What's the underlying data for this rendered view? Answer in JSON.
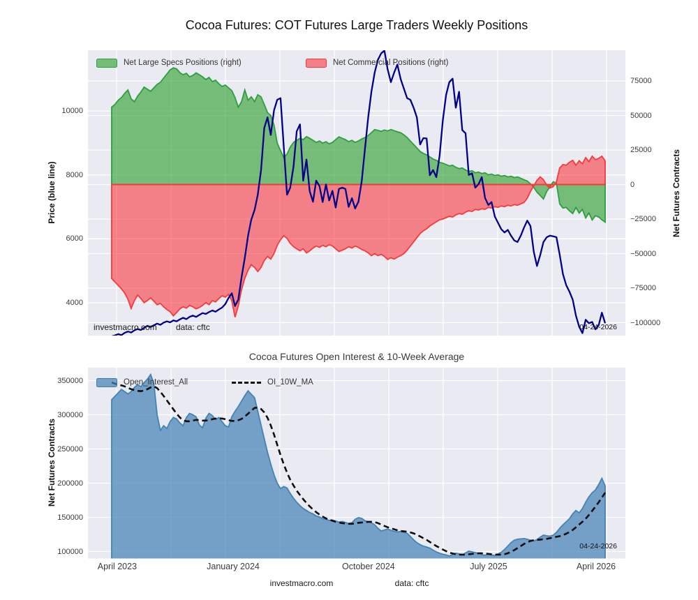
{
  "figure": {
    "title": "Cocoa Futures: COT Futures Large Traders Weekly Positions",
    "footer_site": "investmacro.com",
    "footer_source": "data: cftc"
  },
  "top_chart": {
    "legend": [
      {
        "label": "Net Large Specs Positions (right)",
        "swatch_fill": "rgba(44,160,44,0.62)",
        "swatch_edge": "#2f9e3f"
      },
      {
        "label": "Net Commercial Positions (right)",
        "swatch_fill": "rgba(252,40,48,0.55)",
        "swatch_edge": "#f63a3a"
      }
    ],
    "ylabel_left": "Price (blue line)",
    "ylabel_right": "Net Futures Contracts",
    "watermark": "investmacro.com",
    "source": "data: cftc",
    "date_label": "04-24-2026"
  },
  "bottom_chart": {
    "title": "Cocoa Futures Open Interest & 10-Week Average",
    "legend": [
      {
        "label": "Open_Interest_All",
        "swatch_fill": "rgba(70,130,180,0.72)",
        "swatch_edge": "#3c7fa8"
      },
      {
        "label": "OI_10W_MA"
      }
    ],
    "ylabel": "Net Futures Contracts",
    "date_label": "04-24-2026"
  },
  "colors": {
    "plot_bg": "#eaeaf2",
    "grid": "#ffffff",
    "price_line": "#00008b",
    "specs_fill": "rgba(44,160,44,0.62)",
    "specs_edge": "#2f9e3f",
    "comm_fill": "rgba(252,40,48,0.55)",
    "comm_edge": "#f63a3a",
    "oi_fill": "rgba(70,130,180,0.72)",
    "oi_edge": "#4384b4",
    "ma_line": "#0d0d0d"
  },
  "chart_data": [
    {
      "id": "cot_positions",
      "type": "line",
      "title": "Cocoa Futures: COT Futures Large Traders Weekly Positions",
      "x_unit": "weeks",
      "x_range_labels": [
        "April 2023",
        "April 2026"
      ],
      "last_date": "04-24-2026",
      "grid_on": true,
      "legend_position": "upper-left-inside",
      "xticks": [
        {
          "label": "April 2023",
          "week": 1.7
        },
        {
          "label": "January 2024",
          "week": 37.4
        },
        {
          "label": "October 2024",
          "week": 79.1
        },
        {
          "label": "July 2025",
          "week": 116.1
        },
        {
          "label": "April 2026",
          "week": 149.2
        }
      ],
      "grid_weeks": [
        1.5,
        18.3,
        35,
        51.8,
        68.6,
        85.4,
        102.1,
        118.9,
        135.7,
        152.4
      ],
      "axes": {
        "left": {
          "label": "Price (blue line)",
          "ticks": [
            10000,
            8000,
            6000,
            4000
          ],
          "range": [
            2975,
            11900
          ]
        },
        "right": {
          "label": "Net Futures Contracts",
          "ticks": [
            75000,
            50000,
            25000,
            0,
            -25000,
            -50000,
            -75000,
            -100000
          ],
          "range": [
            -109000,
            97000
          ]
        }
      },
      "series": [
        {
          "name": "Net Large Specs Positions",
          "axis": "right",
          "style": "area",
          "baseline": 0,
          "fill": "rgba(44,160,44,0.62)",
          "edge": "#2f9e3f",
          "values": [
            56000,
            58000,
            61000,
            63000,
            66000,
            68500,
            62000,
            60000,
            64000,
            67000,
            70500,
            69000,
            67500,
            70000,
            72500,
            74000,
            77000,
            80000,
            83000,
            84500,
            83800,
            81000,
            79500,
            80500,
            78000,
            79000,
            80800,
            79500,
            78000,
            76000,
            77500,
            74500,
            75500,
            73000,
            71000,
            72000,
            70000,
            68000,
            63000,
            56000,
            60000,
            68500,
            61000,
            63500,
            60000,
            65000,
            63500,
            58000,
            52000,
            50000,
            43000,
            30000,
            24600,
            19600,
            22000,
            27000,
            30500,
            32000,
            33500,
            32500,
            34700,
            33500,
            32000,
            30500,
            31500,
            30000,
            31000,
            29500,
            30500,
            32500,
            34500,
            33500,
            32500,
            31000,
            32000,
            30500,
            31500,
            33000,
            34000,
            35500,
            37500,
            39800,
            39200,
            38500,
            39500,
            38800,
            39800,
            39000,
            38200,
            37500,
            36000,
            34000,
            31500,
            29000,
            26500,
            24000,
            22500,
            21500,
            20000,
            18500,
            17500,
            16000,
            15500,
            14500,
            13500,
            14000,
            12500,
            11500,
            12000,
            10500,
            9500,
            10000,
            8500,
            9000,
            8000,
            8500,
            7000,
            7500,
            6500,
            7000,
            6000,
            6500,
            5500,
            6000,
            5000,
            5500,
            4500,
            3500,
            2500,
            500,
            -2000,
            -5500,
            -8000,
            -10500,
            -5000,
            -1500,
            2000,
            1000,
            -14000,
            -17000,
            -16500,
            -19000,
            -21000,
            -16600,
            -20700,
            -18000,
            -24200,
            -20500,
            -25700,
            -22500,
            -23500,
            -25500,
            -27200
          ]
        },
        {
          "name": "Net Commercial Positions",
          "axis": "right",
          "style": "area",
          "baseline": 0,
          "fill": "rgba(252,40,48,0.55)",
          "edge": "#f63a3a",
          "values": [
            -68000,
            -70500,
            -73000,
            -75500,
            -78500,
            -83000,
            -89700,
            -84000,
            -80000,
            -82500,
            -85500,
            -84000,
            -82000,
            -84500,
            -87000,
            -86000,
            -88500,
            -90500,
            -92000,
            -95000,
            -92700,
            -90000,
            -88500,
            -89500,
            -87500,
            -88500,
            -90000,
            -89000,
            -87500,
            -85500,
            -87000,
            -84000,
            -85000,
            -82500,
            -80500,
            -81500,
            -79500,
            -84000,
            -96000,
            -88000,
            -76000,
            -68000,
            -62000,
            -58000,
            -60000,
            -63000,
            -60000,
            -55000,
            -52000,
            -54000,
            -50000,
            -44000,
            -40000,
            -37000,
            -39000,
            -42500,
            -45000,
            -46500,
            -48000,
            -46500,
            -49500,
            -48000,
            -46000,
            -44500,
            -45500,
            -44000,
            -45000,
            -43500,
            -44500,
            -46500,
            -48500,
            -47500,
            -46500,
            -45000,
            -46000,
            -44500,
            -45500,
            -47000,
            -48000,
            -49500,
            -51500,
            -50000,
            -51500,
            -50500,
            -52000,
            -54300,
            -53000,
            -54000,
            -52500,
            -51500,
            -50000,
            -47500,
            -44500,
            -41500,
            -38500,
            -35500,
            -33500,
            -32000,
            -30000,
            -28500,
            -27000,
            -25500,
            -25000,
            -24000,
            -23000,
            -23500,
            -22000,
            -21000,
            -21500,
            -20000,
            -19000,
            -19500,
            -18000,
            -18500,
            -17500,
            -18000,
            -16500,
            -17000,
            -16000,
            -16500,
            -15500,
            -16000,
            -15000,
            -15500,
            -14500,
            -15000,
            -14000,
            -13000,
            -10000,
            -5000,
            -1000,
            3000,
            5500,
            3500,
            -500,
            -2500,
            -1500,
            2000,
            12000,
            14500,
            14000,
            16100,
            17500,
            14000,
            17200,
            15000,
            19500,
            16500,
            20500,
            18000,
            19000,
            20500,
            17100
          ]
        },
        {
          "name": "Price",
          "axis": "left",
          "style": "line",
          "color": "#00008b",
          "values": [
            2950,
            2980,
            3020,
            2990,
            3060,
            3100,
            3070,
            3140,
            3180,
            3150,
            3220,
            3280,
            3240,
            3300,
            3350,
            3310,
            3380,
            3420,
            3390,
            3450,
            3420,
            3480,
            3530,
            3490,
            3560,
            3600,
            3560,
            3620,
            3680,
            3650,
            3710,
            3760,
            3720,
            3790,
            3850,
            3960,
            4150,
            4300,
            3900,
            4100,
            4800,
            5400,
            6100,
            6600,
            6900,
            7380,
            8150,
            9470,
            9800,
            9250,
            10020,
            10350,
            10400,
            8900,
            7380,
            7600,
            8260,
            9360,
            9580,
            7820,
            8480,
            7490,
            7160,
            7820,
            7650,
            7150,
            7700,
            7200,
            7500,
            6980,
            7560,
            7600,
            7560,
            7000,
            7270,
            6950,
            7160,
            7800,
            8800,
            9800,
            10600,
            11200,
            11600,
            11800,
            11890,
            11300,
            10900,
            11200,
            11450,
            11000,
            10700,
            10400,
            10350,
            10100,
            9800,
            8950,
            9150,
            9140,
            7990,
            8150,
            7930,
            8600,
            9700,
            10500,
            10900,
            11010,
            10100,
            10600,
            9400,
            9300,
            8000,
            8050,
            7600,
            7710,
            7930,
            7280,
            7060,
            7150,
            6700,
            6500,
            6300,
            6200,
            6280,
            6100,
            5950,
            5900,
            6100,
            6350,
            6570,
            6400,
            5600,
            5150,
            5500,
            5900,
            6050,
            6100,
            6080,
            6050,
            5500,
            4900,
            4550,
            4350,
            4100,
            3600,
            3250,
            3050,
            3470,
            3360,
            3400,
            3170,
            3300,
            3690,
            3360
          ]
        }
      ]
    },
    {
      "id": "open_interest",
      "type": "area",
      "title": "Cocoa Futures Open Interest & 10-Week Average",
      "x_unit": "weeks",
      "last_date": "04-24-2026",
      "grid_on": true,
      "ma_window": 10,
      "ylabel": "Net Futures Contracts",
      "yticks": [
        350000,
        300000,
        250000,
        200000,
        150000,
        100000
      ],
      "y_range": [
        90000,
        369000
      ],
      "xticks": [
        {
          "label": "April 2023",
          "week": 1.7
        },
        {
          "label": "January 2024",
          "week": 37.4
        },
        {
          "label": "October 2024",
          "week": 79.1
        },
        {
          "label": "July 2025",
          "week": 116.1
        },
        {
          "label": "April 2026",
          "week": 149.2
        }
      ],
      "grid_weeks": [
        1.5,
        18.3,
        35,
        51.8,
        68.6,
        85.4,
        102.1,
        118.9,
        135.7,
        152.4
      ],
      "series": [
        {
          "name": "Open_Interest_All",
          "style": "area",
          "fill": "rgba(70,130,180,0.72)",
          "edge": "#4384b4",
          "values": [
            322000,
            327000,
            332000,
            337000,
            334000,
            330500,
            334000,
            340000,
            344000,
            341000,
            347000,
            352000,
            359000,
            345000,
            300000,
            277000,
            284000,
            280000,
            290000,
            296000,
            294000,
            288000,
            284000,
            296000,
            302000,
            300000,
            297000,
            285000,
            281000,
            295000,
            302000,
            299000,
            293000,
            296000,
            290000,
            284000,
            282000,
            297000,
            305000,
            312000,
            320000,
            328000,
            335000,
            330000,
            325000,
            305000,
            285000,
            265000,
            245000,
            228000,
            212000,
            200000,
            192000,
            195000,
            193000,
            185000,
            178000,
            172000,
            167000,
            163000,
            160000,
            157000,
            155000,
            152000,
            150500,
            148000,
            147000,
            145500,
            146000,
            144500,
            143000,
            144000,
            142500,
            141000,
            142000,
            147000,
            149500,
            148500,
            145000,
            143500,
            142000,
            139000,
            134000,
            130000,
            131500,
            133000,
            131000,
            129500,
            128500,
            129500,
            128000,
            126500,
            122000,
            117000,
            113000,
            110000,
            108000,
            106500,
            105000,
            102000,
            99500,
            97500,
            96000,
            95000,
            93500,
            95500,
            97500,
            96500,
            95000,
            98000,
            100500,
            99500,
            98500,
            97000,
            95500,
            94500,
            96000,
            95000,
            94000,
            96500,
            99000,
            103000,
            108000,
            113000,
            116500,
            118000,
            118500,
            119000,
            118000,
            116500,
            115500,
            117500,
            121000,
            124000,
            123000,
            122500,
            124000,
            128000,
            134000,
            139000,
            143500,
            148000,
            155000,
            160000,
            156500,
            163000,
            172000,
            180000,
            186000,
            190000,
            198000,
            207000,
            196000
          ]
        },
        {
          "name": "OI_10W_MA",
          "style": "dashed-line",
          "color": "#0d0d0d",
          "values": [
            347000,
            345500,
            344000,
            343000,
            341500,
            339500,
            337500,
            336000,
            335000,
            334500,
            335500,
            337500,
            340000,
            341500,
            339000,
            333500,
            327500,
            321000,
            314500,
            308000,
            301500,
            296000,
            292000,
            290500,
            290500,
            291500,
            292500,
            292500,
            291500,
            291500,
            292500,
            293500,
            294500,
            295000,
            294500,
            293500,
            292000,
            291000,
            291000,
            292000,
            294000,
            297500,
            301500,
            306000,
            310000,
            310500,
            308500,
            303500,
            295500,
            284500,
            271000,
            256000,
            241000,
            227500,
            215500,
            205000,
            196500,
            189000,
            182500,
            176500,
            171000,
            166000,
            161500,
            157500,
            154000,
            151000,
            148500,
            146500,
            145000,
            143500,
            142500,
            141500,
            141000,
            140500,
            140500,
            141000,
            142000,
            142500,
            143000,
            143500,
            143500,
            143000,
            141500,
            139500,
            137500,
            135500,
            134000,
            132500,
            131000,
            130000,
            129500,
            129000,
            128000,
            126500,
            124500,
            122000,
            119500,
            117000,
            114000,
            111000,
            108000,
            105500,
            103000,
            100500,
            98500,
            97000,
            96000,
            95500,
            95500,
            95500,
            96000,
            96500,
            97000,
            97500,
            97500,
            97000,
            96500,
            96000,
            95500,
            95500,
            95500,
            96000,
            97500,
            99500,
            102000,
            105000,
            108000,
            111000,
            113500,
            115500,
            116500,
            117000,
            117500,
            118000,
            118500,
            119500,
            120500,
            121500,
            122500,
            124000,
            126000,
            128500,
            131500,
            135500,
            139500,
            143500,
            148000,
            153500,
            159500,
            165500,
            172000,
            179000,
            186000
          ]
        }
      ]
    }
  ]
}
